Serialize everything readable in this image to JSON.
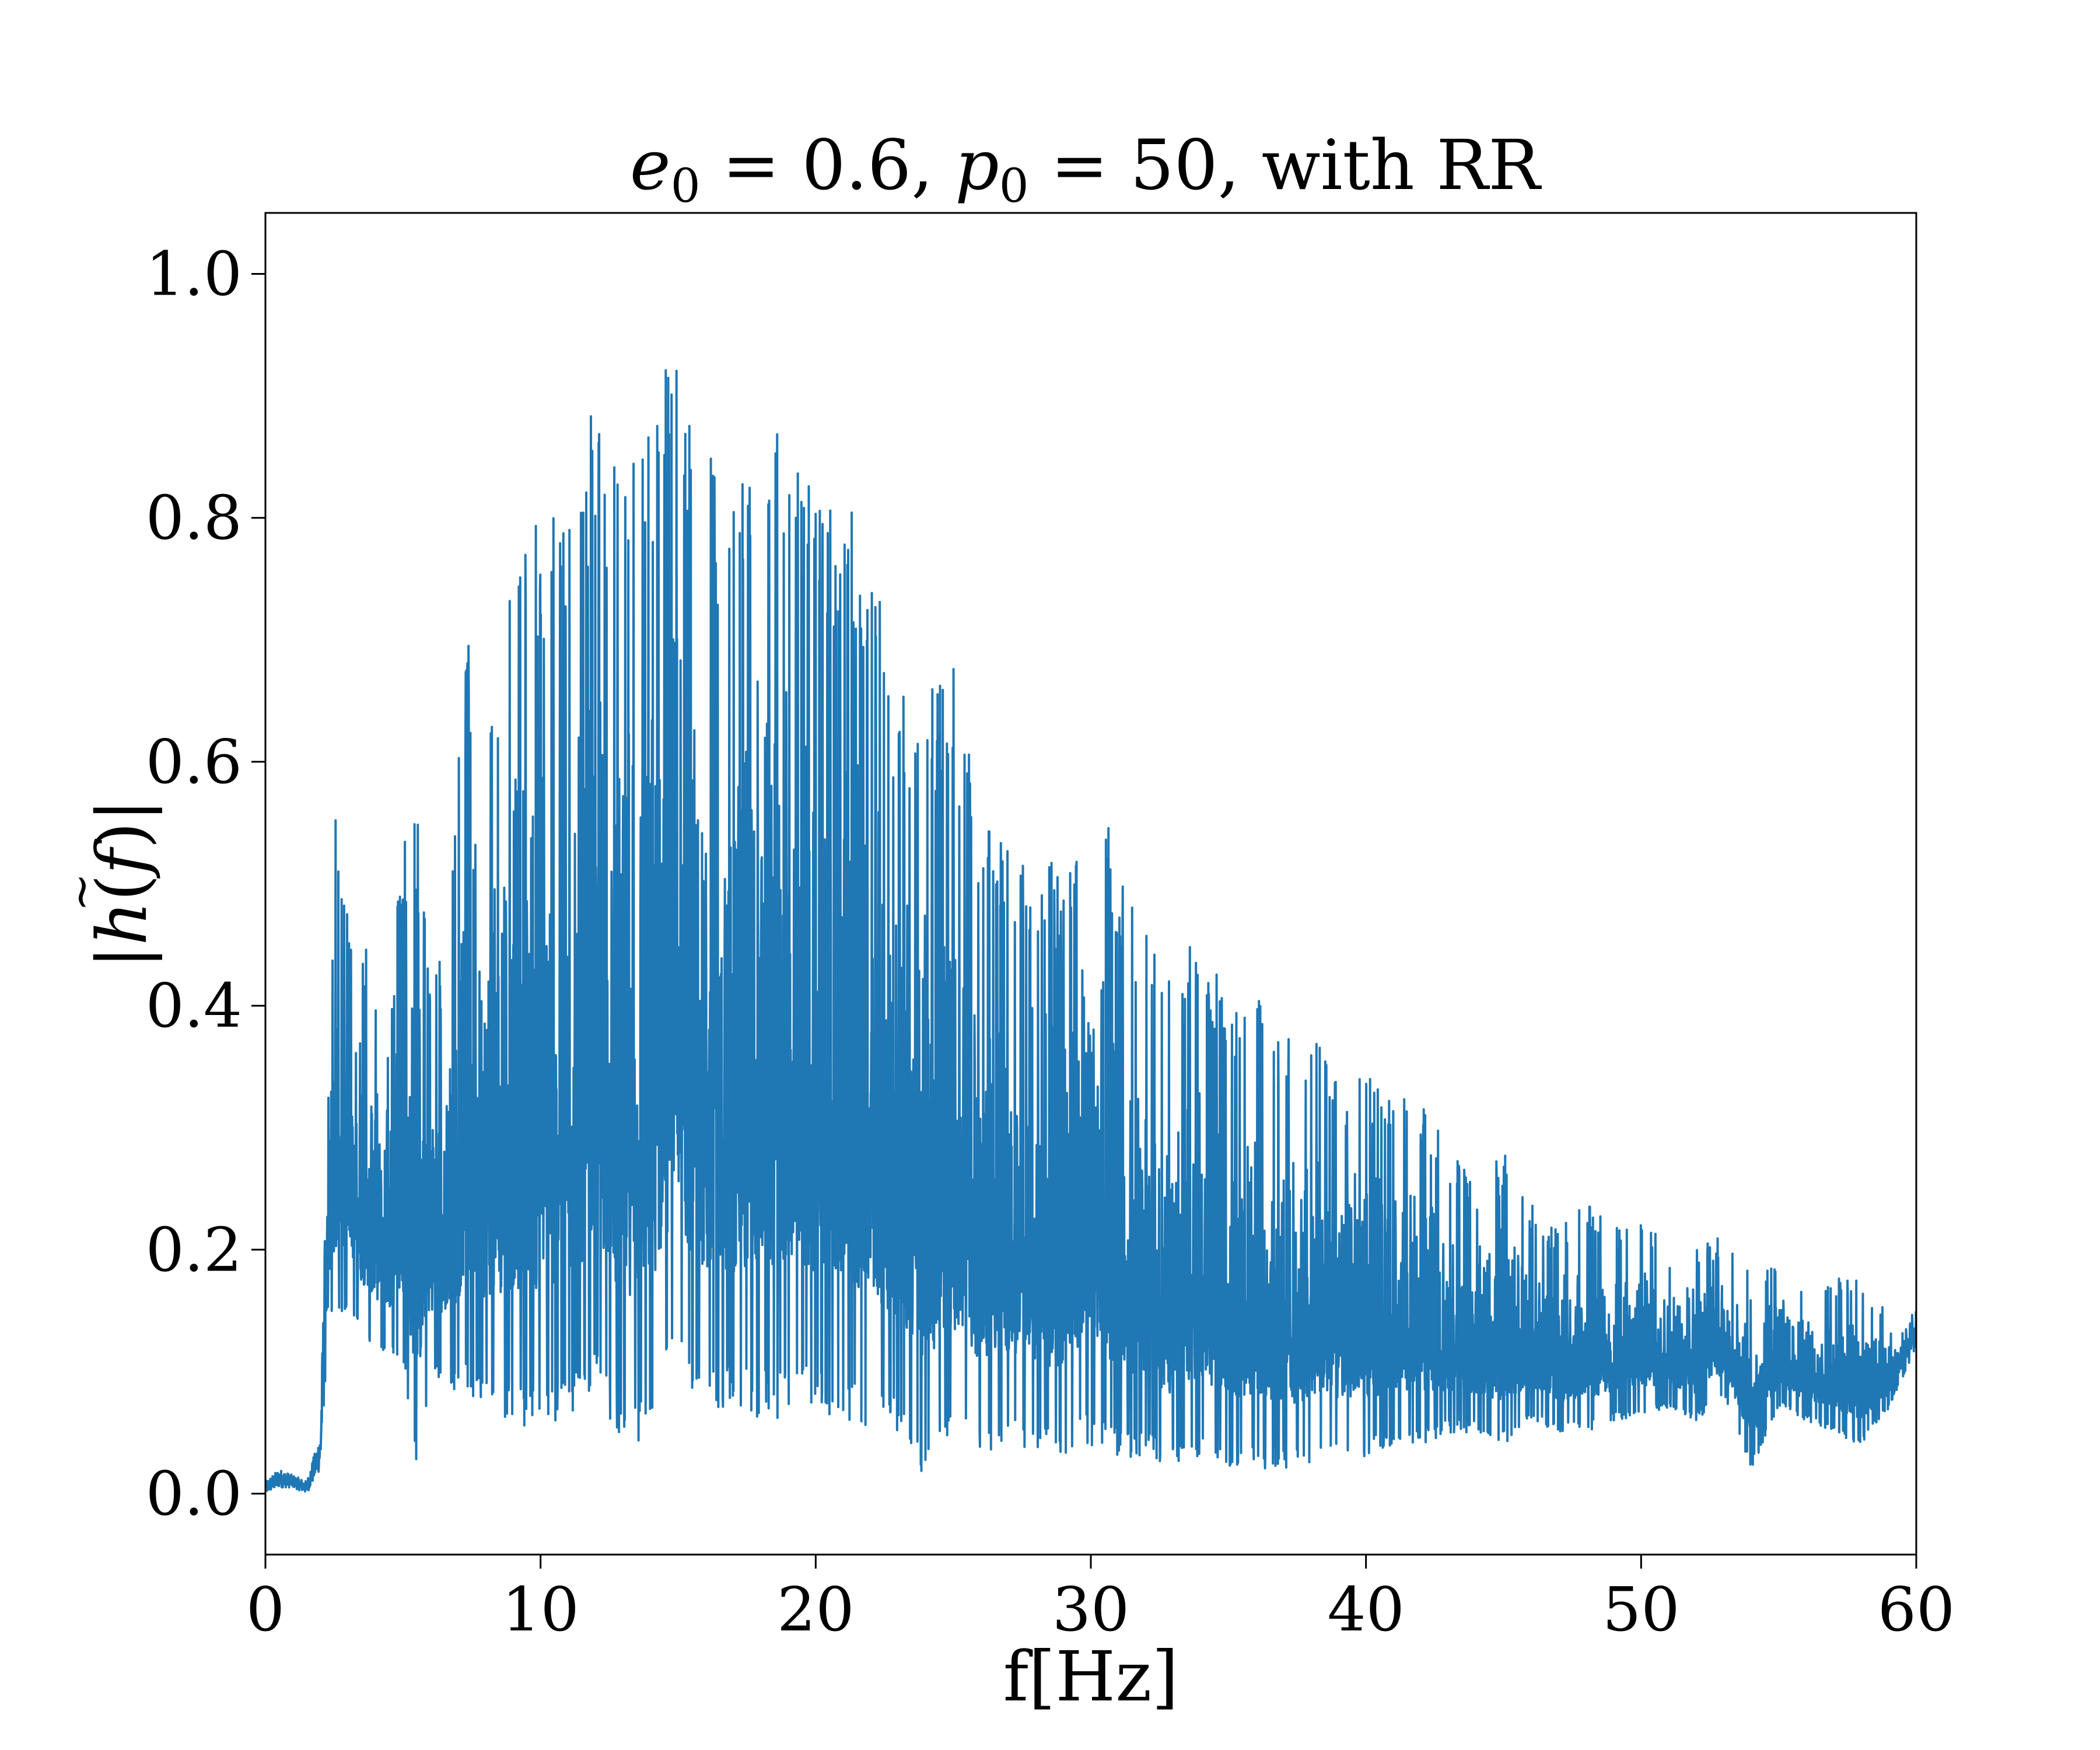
{
  "chart_data": {
    "type": "line",
    "title": {
      "e_symbol": "e",
      "e_sub": "0",
      "e_value": " = 0.6, ",
      "p_symbol": "p",
      "p_sub": "0",
      "p_value": " = 50, with RR"
    },
    "xlabel": "f[Hz]",
    "ylabel": {
      "open": "|",
      "h": "h",
      "tilde": "~",
      "paren_open": "(",
      "f": "f",
      "paren_close": ")",
      "close": "|"
    },
    "xlim": [
      0,
      60
    ],
    "ylim": [
      -0.05,
      1.05
    ],
    "xticks": [
      0,
      10,
      20,
      30,
      40,
      50,
      60
    ],
    "xtick_labels": [
      "0",
      "10",
      "20",
      "30",
      "40",
      "50",
      "60"
    ],
    "yticks": [
      0.0,
      0.2,
      0.4,
      0.6,
      0.8,
      1.0
    ],
    "ytick_labels": [
      "0.0",
      "0.2",
      "0.4",
      "0.6",
      "0.8",
      "1.0"
    ],
    "grid": false,
    "series": [
      {
        "color": "#1f77b4",
        "sampled_points": {
          "x": [
            0,
            0.5,
            1.0,
            1.5,
            2.0,
            2.2,
            2.4,
            2.6,
            2.8,
            3.0,
            3.5,
            4.0,
            4.5,
            5.0,
            5.5,
            6.0,
            6.5,
            7.0,
            7.3,
            7.5,
            8.0,
            9.0,
            10.0,
            11.0,
            12.0,
            13.0,
            14.0,
            14.6,
            15.0,
            15.5,
            16.0,
            17.0,
            18.0,
            19.0,
            20.0,
            21.0,
            22.0,
            23.0,
            24.0,
            25.0,
            26.0,
            27.0,
            28.0,
            29.0,
            30.0,
            31.0,
            32.0,
            33.0,
            34.0,
            35.0,
            36.0,
            37.0,
            38.0,
            39.0,
            40.0,
            41.0,
            42.0,
            43.0,
            44.0,
            45.0,
            46.0,
            47.0,
            48.0,
            49.0,
            50.0,
            51.0,
            52.0,
            53.0,
            54.0,
            55.0,
            56.0,
            57.0,
            58.0,
            59.0,
            60.0
          ],
          "upper": [
            0.01,
            0.02,
            0.015,
            0.01,
            0.05,
            0.25,
            0.44,
            0.59,
            0.49,
            0.49,
            0.47,
            0.43,
            0.39,
            0.55,
            0.57,
            0.42,
            0.45,
            0.6,
            0.7,
            0.7,
            0.67,
            0.77,
            0.8,
            0.83,
            0.9,
            0.85,
            0.88,
            0.96,
            1.0,
            0.89,
            0.87,
            0.81,
            0.9,
            0.91,
            0.82,
            0.82,
            0.78,
            0.66,
            0.67,
            0.68,
            0.55,
            0.53,
            0.54,
            0.5,
            0.63,
            0.51,
            0.46,
            0.42,
            0.47,
            0.4,
            0.42,
            0.38,
            0.38,
            0.34,
            0.36,
            0.32,
            0.33,
            0.28,
            0.26,
            0.28,
            0.24,
            0.22,
            0.24,
            0.22,
            0.23,
            0.2,
            0.21,
            0.21,
            0.18,
            0.2,
            0.17,
            0.18,
            0.18,
            0.15,
            0.16
          ],
          "lower": [
            0.0,
            0.005,
            0.005,
            0.0,
            0.02,
            0.1,
            0.15,
            0.12,
            0.15,
            0.15,
            0.12,
            0.11,
            0.11,
            0.1,
            0.01,
            0.1,
            0.09,
            0.08,
            0.09,
            0.08,
            0.07,
            0.06,
            0.05,
            0.06,
            0.08,
            0.04,
            0.04,
            0.08,
            0.1,
            0.07,
            0.06,
            0.07,
            0.06,
            0.06,
            0.07,
            0.06,
            0.05,
            0.05,
            0.01,
            0.04,
            0.03,
            0.04,
            0.03,
            0.03,
            0.04,
            0.03,
            0.03,
            0.02,
            0.03,
            0.02,
            0.02,
            0.02,
            0.02,
            0.03,
            0.03,
            0.04,
            0.04,
            0.05,
            0.05,
            0.04,
            0.06,
            0.05,
            0.05,
            0.06,
            0.06,
            0.07,
            0.06,
            0.08,
            0.02,
            0.07,
            0.06,
            0.05,
            0.04,
            0.07,
            0.12
          ]
        }
      }
    ]
  }
}
